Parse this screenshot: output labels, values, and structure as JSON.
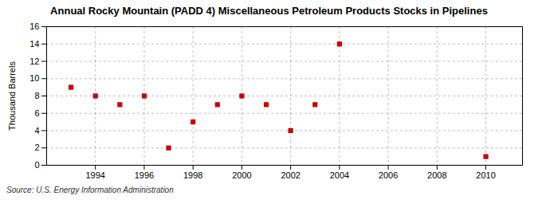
{
  "chart_data": {
    "type": "scatter",
    "title": "Annual Rocky Mountain (PADD 4) Miscellaneous Petroleum Products Stocks in Pipelines",
    "ylabel": "Thousand Barrels",
    "source": "Source: U.S. Energy Information Administration",
    "x": [
      1993,
      1994,
      1995,
      1996,
      1997,
      1998,
      1999,
      2000,
      2001,
      2002,
      2003,
      2004,
      2010
    ],
    "values": [
      9,
      8,
      7,
      8,
      2,
      5,
      7,
      8,
      7,
      4,
      7,
      14,
      1
    ],
    "color": "#cc0000",
    "marker": "square",
    "xlim": [
      1992,
      2011.5
    ],
    "ylim": [
      0,
      16
    ],
    "xticks": [
      1994,
      1996,
      1998,
      2000,
      2002,
      2004,
      2006,
      2008,
      2010
    ],
    "yticks": [
      0,
      2,
      4,
      6,
      8,
      10,
      12,
      14,
      16
    ],
    "grid": true
  }
}
